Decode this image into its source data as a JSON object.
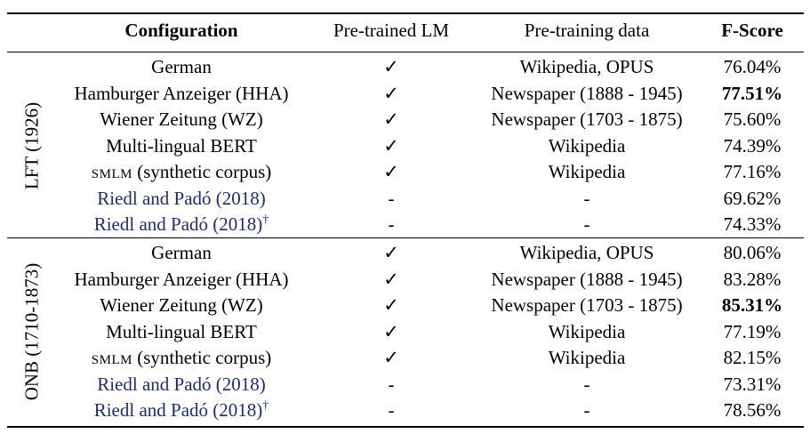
{
  "headers": {
    "configuration": "Configuration",
    "pretrained_lm": "Pre-trained LM",
    "pretraining_data": "Pre-training data",
    "fscore": "F-Score"
  },
  "groups": [
    {
      "label": "LFT (1926)",
      "rows": [
        {
          "config": "German",
          "lm": "✓",
          "data": "Wikipedia, OPUS",
          "score": "76.04%",
          "bold": false,
          "cite": false,
          "dagger": false,
          "smlm": false
        },
        {
          "config": "Hamburger Anzeiger (HHA)",
          "lm": "✓",
          "data": "Newspaper (1888 - 1945)",
          "score": "77.51%",
          "bold": true,
          "cite": false,
          "dagger": false,
          "smlm": false
        },
        {
          "config": "Wiener Zeitung (WZ)",
          "lm": "✓",
          "data": "Newspaper (1703 - 1875)",
          "score": "75.60%",
          "bold": false,
          "cite": false,
          "dagger": false,
          "smlm": false
        },
        {
          "config": "Multi-lingual BERT",
          "lm": "✓",
          "data": "Wikipedia",
          "score": "74.39%",
          "bold": false,
          "cite": false,
          "dagger": false,
          "smlm": false
        },
        {
          "config": "SMLM",
          "config_suffix": " (synthetic corpus)",
          "lm": "✓",
          "data": "Wikipedia",
          "score": "77.16%",
          "bold": false,
          "cite": false,
          "dagger": false,
          "smlm": true
        },
        {
          "config": "Riedl and Padó (2018)",
          "lm": "-",
          "data": "-",
          "score": "69.62%",
          "bold": false,
          "cite": true,
          "dagger": false,
          "smlm": false
        },
        {
          "config": "Riedl and Padó (2018)",
          "lm": "-",
          "data": "-",
          "score": "74.33%",
          "bold": false,
          "cite": true,
          "dagger": true,
          "smlm": false
        }
      ]
    },
    {
      "label": "ONB (1710-1873)",
      "rows": [
        {
          "config": "German",
          "lm": "✓",
          "data": "Wikipedia, OPUS",
          "score": "80.06%",
          "bold": false,
          "cite": false,
          "dagger": false,
          "smlm": false
        },
        {
          "config": "Hamburger Anzeiger (HHA)",
          "lm": "✓",
          "data": "Newspaper (1888 - 1945)",
          "score": "83.28%",
          "bold": false,
          "cite": false,
          "dagger": false,
          "smlm": false
        },
        {
          "config": "Wiener Zeitung (WZ)",
          "lm": "✓",
          "data": "Newspaper (1703 - 1875)",
          "score": "85.31%",
          "bold": true,
          "cite": false,
          "dagger": false,
          "smlm": false
        },
        {
          "config": "Multi-lingual BERT",
          "lm": "✓",
          "data": "Wikipedia",
          "score": "77.19%",
          "bold": false,
          "cite": false,
          "dagger": false,
          "smlm": false
        },
        {
          "config": "SMLM",
          "config_suffix": " (synthetic corpus)",
          "lm": "✓",
          "data": "Wikipedia",
          "score": "82.15%",
          "bold": false,
          "cite": false,
          "dagger": false,
          "smlm": true
        },
        {
          "config": "Riedl and Padó (2018)",
          "lm": "-",
          "data": "-",
          "score": "73.31%",
          "bold": false,
          "cite": true,
          "dagger": false,
          "smlm": false
        },
        {
          "config": "Riedl and Padó (2018)",
          "lm": "-",
          "data": "-",
          "score": "78.56%",
          "bold": false,
          "cite": true,
          "dagger": true,
          "smlm": false
        }
      ]
    }
  ],
  "dagger_symbol": "†",
  "colors": {
    "citation": "#1f2a7a"
  }
}
